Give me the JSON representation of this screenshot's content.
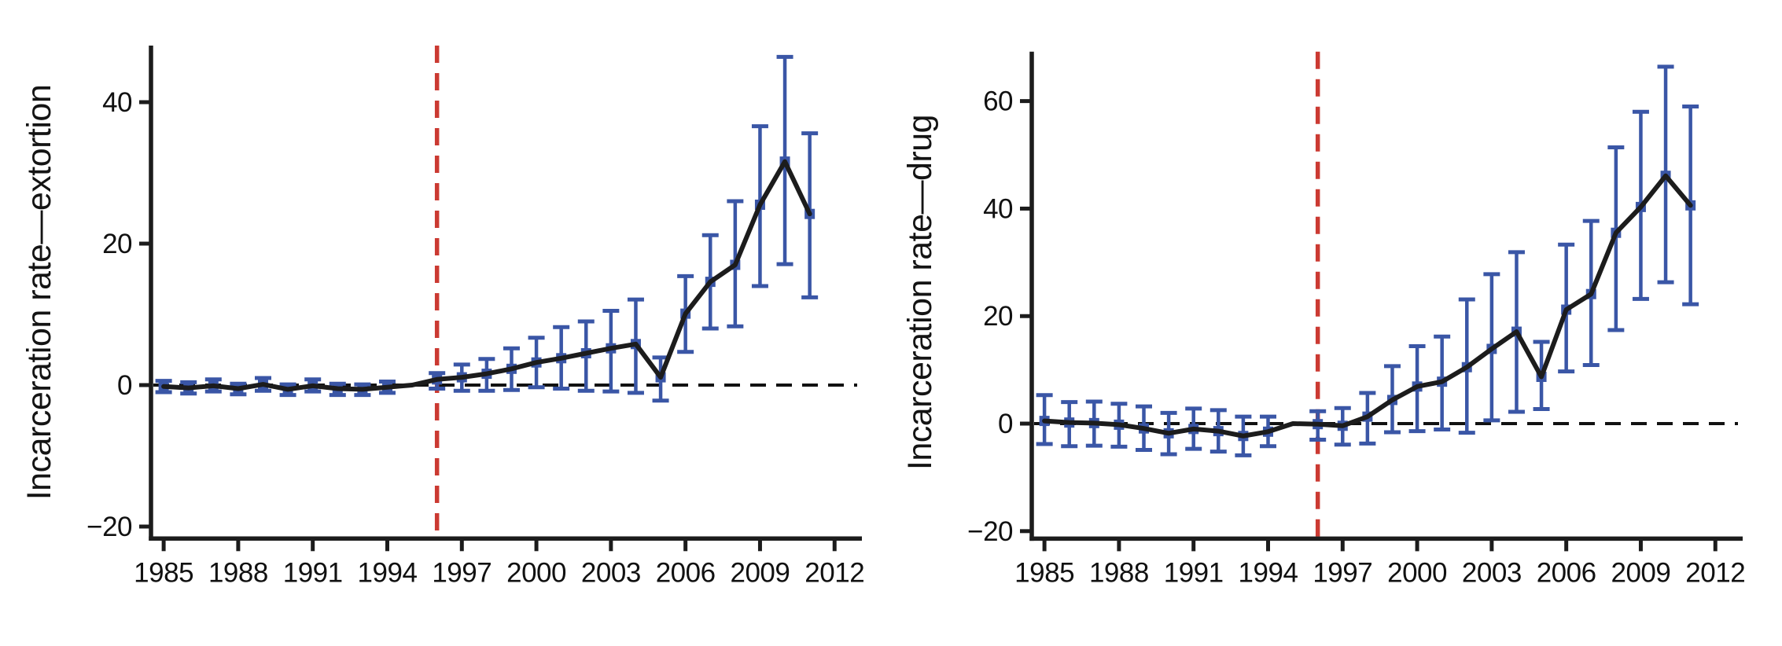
{
  "figure": {
    "background": "#ffffff",
    "panel_count": 2
  },
  "colors": {
    "estimate_line": "#1c1c1c",
    "error_bar": "#3a56a6",
    "treatment_line": "#cb3a32",
    "zero_line": "#111111",
    "axis": "#1c1c1c",
    "text": "#111111"
  },
  "chart_data": [
    {
      "type": "line",
      "title": "",
      "ylabel": "Incarceration rate—extortion",
      "xlabel": "",
      "grid": false,
      "legend_position": "none",
      "reference_year": 1995,
      "treatment_line_x": 1996,
      "zero_line": true,
      "xlim": [
        1984.49,
        2013.1
      ],
      "ylim": [
        -21.7,
        48.0
      ],
      "xticks": [
        {
          "value": 1985,
          "label": "1985"
        },
        {
          "value": 1988,
          "label": "1988"
        },
        {
          "value": 1991,
          "label": "1991"
        },
        {
          "value": 1994,
          "label": "1994"
        },
        {
          "value": 1997,
          "label": "1997"
        },
        {
          "value": 2000,
          "label": "2000"
        },
        {
          "value": 2003,
          "label": "2003"
        },
        {
          "value": 2006,
          "label": "2006"
        },
        {
          "value": 2009,
          "label": "2009"
        },
        {
          "value": 2012,
          "label": "2012"
        }
      ],
      "yticks": [
        {
          "value": -20,
          "label": "−20"
        },
        {
          "value": 0,
          "label": "0"
        },
        {
          "value": 20,
          "label": "20"
        },
        {
          "value": 40,
          "label": "40"
        }
      ],
      "x": [
        1985,
        1986,
        1987,
        1988,
        1989,
        1990,
        1991,
        1992,
        1993,
        1994,
        1995,
        1996,
        1997,
        1998,
        1999,
        2000,
        2001,
        2002,
        2003,
        2004,
        2005,
        2006,
        2007,
        2008,
        2009,
        2010,
        2011
      ],
      "series": [
        {
          "name": "point estimate",
          "values": [
            -0.2,
            -0.4,
            -0.1,
            -0.5,
            0.1,
            -0.6,
            -0.1,
            -0.5,
            -0.6,
            -0.3,
            0,
            0.8,
            1.1,
            1.6,
            2.3,
            3.2,
            3.8,
            4.5,
            5.2,
            5.8,
            1.1,
            10.1,
            14.6,
            17.0,
            25.5,
            31.6,
            24.2
          ]
        },
        {
          "name": "ci lower",
          "values": [
            -1.0,
            -1.2,
            -0.9,
            -1.3,
            -0.8,
            -1.4,
            -0.9,
            -1.4,
            -1.4,
            -1.1,
            null,
            -0.5,
            -0.8,
            -0.8,
            -0.7,
            -0.3,
            -0.5,
            -0.8,
            -0.9,
            -1.1,
            -2.2,
            4.7,
            8.0,
            8.3,
            14.0,
            17.1,
            12.4
          ]
        },
        {
          "name": "ci upper",
          "values": [
            0.6,
            0.4,
            0.8,
            0.2,
            1.0,
            0.1,
            0.8,
            0.2,
            0.1,
            0.5,
            null,
            1.7,
            2.9,
            3.7,
            5.2,
            6.7,
            8.2,
            9.0,
            10.5,
            12.1,
            3.9,
            15.4,
            21.2,
            26.0,
            36.6,
            46.4,
            35.6
          ]
        }
      ]
    },
    {
      "type": "line",
      "title": "",
      "ylabel": "Incarceration rate—drug",
      "xlabel": "",
      "grid": false,
      "legend_position": "none",
      "reference_year": 1995,
      "treatment_line_x": 1996,
      "zero_line": true,
      "xlim": [
        1984.49,
        2013.1
      ],
      "ylim": [
        -21.4,
        69.2
      ],
      "xticks": [
        {
          "value": 1985,
          "label": "1985"
        },
        {
          "value": 1988,
          "label": "1988"
        },
        {
          "value": 1991,
          "label": "1991"
        },
        {
          "value": 1994,
          "label": "1994"
        },
        {
          "value": 1997,
          "label": "1997"
        },
        {
          "value": 2000,
          "label": "2000"
        },
        {
          "value": 2003,
          "label": "2003"
        },
        {
          "value": 2006,
          "label": "2006"
        },
        {
          "value": 2009,
          "label": "2009"
        },
        {
          "value": 2012,
          "label": "2012"
        }
      ],
      "yticks": [
        {
          "value": -20,
          "label": "−20"
        },
        {
          "value": 0,
          "label": "0"
        },
        {
          "value": 20,
          "label": "20"
        },
        {
          "value": 40,
          "label": "40"
        },
        {
          "value": 60,
          "label": "60"
        }
      ],
      "x": [
        1985,
        1986,
        1987,
        1988,
        1989,
        1990,
        1991,
        1992,
        1993,
        1994,
        1995,
        1996,
        1997,
        1998,
        1999,
        2000,
        2001,
        2002,
        2003,
        2004,
        2005,
        2006,
        2007,
        2008,
        2009,
        2010,
        2011
      ],
      "series": [
        {
          "name": "point estimate",
          "values": [
            0.5,
            0.2,
            0.1,
            -0.2,
            -0.9,
            -1.8,
            -1.0,
            -1.4,
            -2.3,
            -1.5,
            0,
            -0.1,
            -0.4,
            1.3,
            4.4,
            6.9,
            7.8,
            10.5,
            13.9,
            17.1,
            8.7,
            21.2,
            24.1,
            35.5,
            40.3,
            46.1,
            40.6
          ]
        },
        {
          "name": "ci lower",
          "values": [
            -3.8,
            -4.2,
            -4.1,
            -4.3,
            -4.9,
            -5.7,
            -4.7,
            -5.2,
            -5.9,
            -4.2,
            null,
            -3.0,
            -3.9,
            -3.7,
            -1.6,
            -1.4,
            -1.1,
            -1.7,
            0.6,
            2.2,
            2.7,
            9.7,
            10.9,
            17.4,
            23.2,
            26.3,
            22.2
          ]
        },
        {
          "name": "ci upper",
          "values": [
            5.3,
            4.0,
            4.1,
            3.7,
            3.2,
            2.0,
            2.8,
            2.5,
            1.3,
            1.3,
            null,
            2.3,
            2.9,
            5.7,
            10.7,
            14.4,
            16.2,
            23.1,
            27.8,
            31.9,
            15.2,
            33.3,
            37.7,
            51.4,
            58.0,
            66.4,
            59.0
          ]
        }
      ]
    }
  ]
}
